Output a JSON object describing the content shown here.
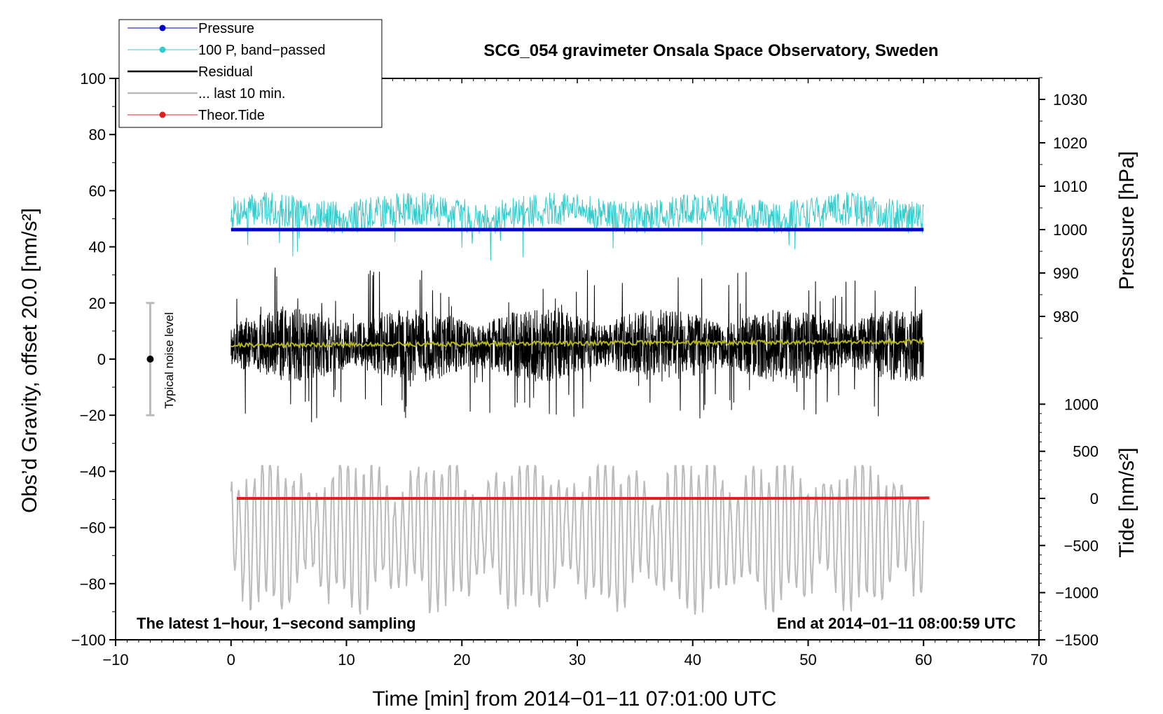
{
  "chart_data": {
    "type": "line",
    "title": "SCG_054 gravimeter Onsala Space Observatory, Sweden",
    "xlabel": "Time [min] from 2014−01−11 07:01:00 UTC",
    "ylabel_left": "Obs’d Gravity, offset 20.0 [nm/s²]",
    "ylabel_right_pressure": "Pressure [hPa]",
    "ylabel_right_tide": "Tide [nm/s²]",
    "xlim": [
      -10,
      70
    ],
    "ylim": [
      -100,
      100
    ],
    "x_ticks": [
      "−10",
      "0",
      "10",
      "20",
      "30",
      "40",
      "50",
      "60",
      "70"
    ],
    "y_ticks": [
      "−100",
      "−80",
      "−60",
      "−40",
      "−20",
      "0",
      "20",
      "40",
      "60",
      "80",
      "100"
    ],
    "pressure_ticks": [
      "980",
      "990",
      "1000",
      "1010",
      "1020",
      "1030"
    ],
    "tide_ticks": [
      "−1500",
      "−1000",
      "−500",
      "0",
      "500",
      "1000"
    ],
    "annotations": {
      "left": "The latest 1−hour, 1−second sampling",
      "right": "End at 2014−01−11 08:00:59 UTC",
      "noise": "Typical noise level"
    },
    "noise_bar": {
      "x": -7,
      "center": 0,
      "low": -20,
      "high": 20
    },
    "legend": [
      {
        "name": "Pressure",
        "color": "#0000cc"
      },
      {
        "name": "100 P, band−passed",
        "color": "#33cccc"
      },
      {
        "name": "Residual",
        "color": "#000000"
      },
      {
        "name": "... last 10 min.",
        "color": "#bbbbbb"
      },
      {
        "name": "Theor.Tide",
        "color": "#e02020"
      }
    ],
    "series": [
      {
        "name": "Pressure",
        "axis": "pressure_hPa",
        "color": "#0000cc",
        "x_range": [
          0,
          60
        ],
        "values": [
          1000.0,
          1000.0,
          1000.0,
          1000.0,
          1000.0
        ]
      },
      {
        "name": "100 P, band−passed",
        "axis": "gravity",
        "color": "#33cccc",
        "x_range": [
          0,
          60
        ],
        "mean": 52,
        "amplitude": 6,
        "min": 35,
        "max": 60
      },
      {
        "name": "Residual",
        "axis": "gravity",
        "color": "#000000",
        "x_range": [
          0,
          60
        ],
        "mean": 5,
        "amplitude": 28,
        "min": -23,
        "max": 33
      },
      {
        "name": "Residual smoothed",
        "axis": "gravity",
        "color": "#b5b51e",
        "x_range": [
          0,
          60
        ],
        "values": [
          5,
          5.2,
          5.5,
          5.8,
          6.0,
          6.2
        ]
      },
      {
        "name": "... last 10 min.",
        "axis": "gravity",
        "color": "#bbbbbb",
        "x_range": [
          0,
          60
        ],
        "mean": -62,
        "amplitude": 28,
        "min": -91,
        "max": -38
      },
      {
        "name": "Theor.Tide",
        "axis": "tide",
        "color": "#e02020",
        "x_range": [
          0.5,
          60.5
        ],
        "values": [
          0,
          0,
          0,
          0,
          5
        ]
      }
    ],
    "colors": {
      "pressure": "#0000cc",
      "band_passed": "#33cccc",
      "residual": "#000000",
      "smoothed": "#b5b51e",
      "last10": "#bbbbbb",
      "tide": "#e02020",
      "noise_bar": "#bbbbbb"
    }
  }
}
